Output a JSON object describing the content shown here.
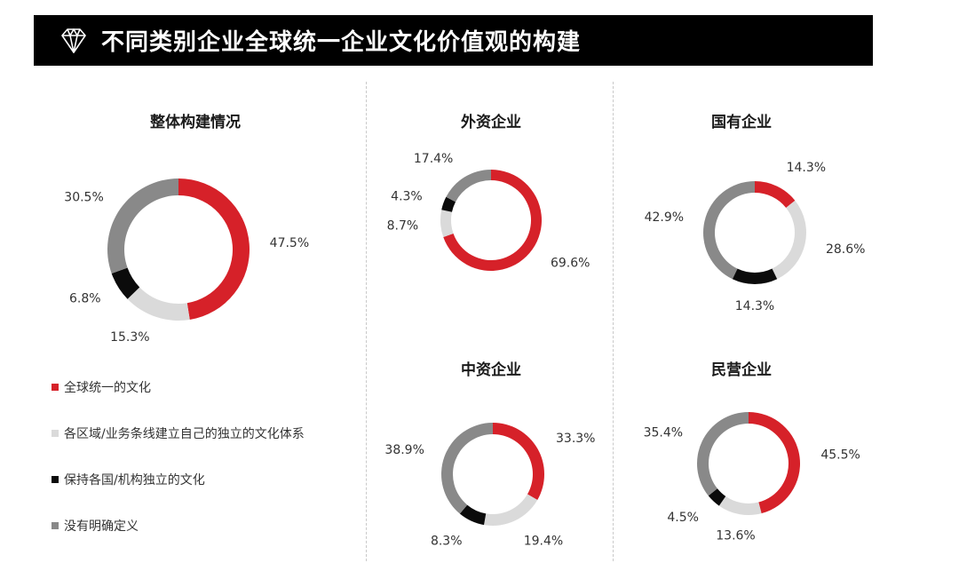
{
  "header": {
    "title": "不同类别企业全球统一企业文化价值观的构建"
  },
  "colors": {
    "red": "#D62129",
    "light_gray": "#DADADA",
    "black": "#0B0B0B",
    "dark_gray": "#898989"
  },
  "legend": [
    {
      "label": "全球统一的文化",
      "color": "#D62129"
    },
    {
      "label": "各区域/业务条线建立自己的独立的文化体系",
      "color": "#DADADA"
    },
    {
      "label": "保持各国/机构独立的文化",
      "color": "#0B0B0B"
    },
    {
      "label": "没有明确定义",
      "color": "#898989"
    }
  ],
  "chart_data": [
    {
      "type": "pie",
      "title": "整体构建情况",
      "series_labels": [
        "全球统一的文化",
        "各区域/业务条线建立自己的独立的文化体系",
        "保持各国/机构独立的文化",
        "没有明确定义"
      ],
      "values": [
        47.5,
        15.3,
        6.8,
        30.5
      ],
      "labels": [
        "47.5%",
        "15.3%",
        "6.8%",
        "30.5%"
      ]
    },
    {
      "type": "pie",
      "title": "外资企业",
      "values": [
        69.6,
        8.7,
        4.3,
        17.4
      ],
      "labels": [
        "69.6%",
        "8.7%",
        "4.3%",
        "17.4%"
      ]
    },
    {
      "type": "pie",
      "title": "国有企业",
      "values": [
        14.3,
        28.6,
        14.3,
        42.9
      ],
      "labels": [
        "14.3%",
        "28.6%",
        "14.3%",
        "42.9%"
      ]
    },
    {
      "type": "pie",
      "title": "中资企业",
      "values": [
        33.3,
        19.4,
        8.3,
        38.9
      ],
      "labels": [
        "33.3%",
        "19.4%",
        "8.3%",
        "38.9%"
      ]
    },
    {
      "type": "pie",
      "title": "民营企业",
      "values": [
        45.5,
        13.6,
        4.5,
        35.4
      ],
      "labels": [
        "45.5%",
        "13.6%",
        "4.5%",
        "35.4%"
      ]
    }
  ]
}
